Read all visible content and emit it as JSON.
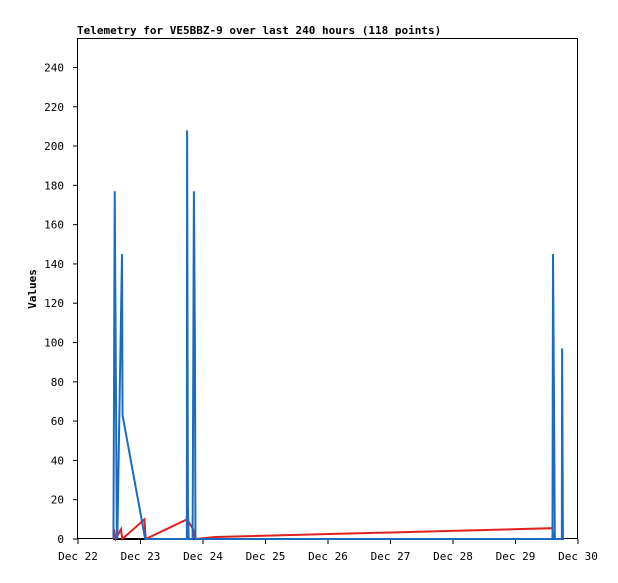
{
  "chart_data": {
    "type": "line",
    "title": "Telemetry for VE5BBZ-9 over last 240 hours (118 points)",
    "y_label": "Values",
    "xlim": [
      0,
      192
    ],
    "xticks": [
      {
        "value": 0,
        "label": "Dec 22"
      },
      {
        "value": 24,
        "label": "Dec 23"
      },
      {
        "value": 48,
        "label": "Dec 24"
      },
      {
        "value": 72,
        "label": "Dec 25"
      },
      {
        "value": 96,
        "label": "Dec 26"
      },
      {
        "value": 120,
        "label": "Dec 27"
      },
      {
        "value": 144,
        "label": "Dec 28"
      },
      {
        "value": 168,
        "label": "Dec 29"
      },
      {
        "value": 192,
        "label": "Dec 30"
      }
    ],
    "ylim": [
      0,
      255
    ],
    "yticks": [
      0,
      20,
      40,
      60,
      80,
      100,
      120,
      140,
      160,
      180,
      200,
      220,
      240
    ],
    "series": [
      {
        "color": "#000000",
        "x": [
          13.5,
          186.5
        ],
        "values": [
          0,
          0
        ]
      },
      {
        "color": "#e02020",
        "x": [
          13.8,
          14.5,
          16.5,
          17,
          25.5,
          26,
          41.9,
          44.2,
          45,
          52.8,
          182.2,
          182.5
        ],
        "values": [
          5,
          0,
          5,
          0,
          10,
          0,
          10,
          5,
          0,
          1,
          5.5,
          0
        ]
      },
      {
        "color": "#1a6cc0",
        "x": [
          13.6,
          13.8,
          14.1,
          14.5,
          14.9,
          15.1,
          16.9,
          17.1,
          25.8,
          41.8,
          41.9,
          42.2,
          42.5,
          44.0,
          44.2,
          44.5,
          44.9,
          45.1,
          182.2,
          182.4,
          182.8,
          183.1,
          185.8,
          185.9,
          186.2
        ],
        "values": [
          0,
          65,
          177,
          89,
          5,
          0,
          145,
          63,
          0,
          0,
          208,
          17,
          0,
          0,
          65,
          177,
          97,
          0,
          0,
          145,
          65,
          0,
          0,
          97,
          0
        ]
      }
    ]
  }
}
